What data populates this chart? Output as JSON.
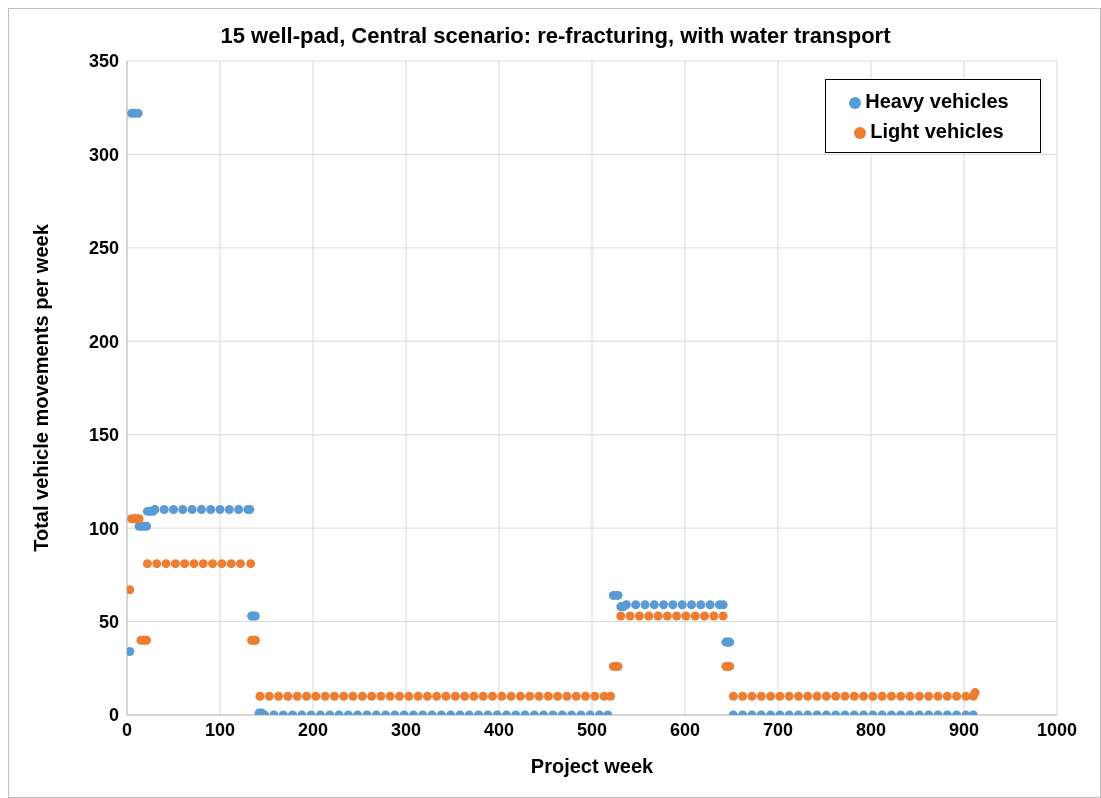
{
  "chart_data": {
    "type": "scatter",
    "title": "15 well-pad, Central scenario: re-fracturing, with water transport",
    "xlabel": "Project week",
    "ylabel": "Total vehicle movements per week",
    "xlim": [
      0,
      1000
    ],
    "xticks": [
      0,
      100,
      200,
      300,
      400,
      500,
      600,
      700,
      800,
      900,
      1000
    ],
    "ylim": [
      0,
      350
    ],
    "yticks": [
      0,
      50,
      100,
      150,
      200,
      250,
      300,
      350
    ],
    "grid": true,
    "legend": "top right",
    "marker": "circle",
    "series": [
      {
        "name": "Heavy vehicles",
        "color": "#5b9bd5",
        "x": [
          3,
          5,
          8,
          12,
          13,
          16,
          19,
          21,
          22,
          25,
          28,
          30,
          40,
          50,
          60,
          70,
          80,
          90,
          100,
          110,
          120,
          130,
          132,
          134,
          136,
          138,
          142,
          145,
          148,
          158,
          168,
          178,
          188,
          198,
          208,
          218,
          228,
          238,
          248,
          258,
          268,
          278,
          288,
          298,
          308,
          318,
          328,
          338,
          348,
          358,
          368,
          378,
          388,
          398,
          408,
          418,
          428,
          438,
          448,
          458,
          468,
          478,
          488,
          498,
          508,
          517,
          523,
          526,
          528,
          531,
          534,
          537,
          547,
          557,
          567,
          577,
          587,
          597,
          607,
          617,
          627,
          637,
          641,
          644,
          646,
          648,
          652,
          662,
          672,
          682,
          692,
          702,
          712,
          722,
          732,
          742,
          752,
          762,
          772,
          782,
          792,
          802,
          812,
          822,
          832,
          842,
          852,
          862,
          872,
          882,
          892,
          902,
          910
        ],
        "values": [
          34,
          322,
          322,
          322,
          101,
          101,
          101,
          101,
          109,
          109,
          109,
          110,
          110,
          110,
          110,
          110,
          110,
          110,
          110,
          110,
          110,
          110,
          110,
          53,
          53,
          53,
          1,
          1,
          0,
          0,
          0,
          0,
          0,
          0,
          0,
          0,
          0,
          0,
          0,
          0,
          0,
          0,
          0,
          0,
          0,
          0,
          0,
          0,
          0,
          0,
          0,
          0,
          0,
          0,
          0,
          0,
          0,
          0,
          0,
          0,
          0,
          0,
          0,
          0,
          0,
          0,
          64,
          64,
          64,
          58,
          58,
          59,
          59,
          59,
          59,
          59,
          59,
          59,
          59,
          59,
          59,
          59,
          59,
          39,
          39,
          39,
          0,
          0,
          0,
          0,
          0,
          0,
          0,
          0,
          0,
          0,
          0,
          0,
          0,
          0,
          0,
          0,
          0,
          0,
          0,
          0,
          0,
          0,
          0,
          0,
          0,
          0,
          0
        ]
      },
      {
        "name": "Light vehicles",
        "color": "#ed7d31",
        "x": [
          3,
          5,
          8,
          10,
          13,
          15,
          18,
          21,
          22,
          32,
          42,
          52,
          62,
          72,
          82,
          92,
          102,
          112,
          122,
          133,
          134,
          136,
          138,
          143,
          153,
          163,
          173,
          183,
          193,
          203,
          213,
          223,
          233,
          243,
          253,
          263,
          273,
          283,
          293,
          303,
          313,
          323,
          333,
          343,
          353,
          363,
          373,
          383,
          393,
          403,
          413,
          423,
          433,
          443,
          453,
          463,
          473,
          483,
          493,
          503,
          513,
          520,
          523,
          526,
          528,
          531,
          541,
          551,
          561,
          571,
          581,
          591,
          601,
          611,
          621,
          631,
          641,
          644,
          646,
          648,
          652,
          662,
          672,
          682,
          692,
          702,
          712,
          722,
          732,
          742,
          752,
          762,
          772,
          782,
          792,
          802,
          812,
          822,
          832,
          842,
          852,
          862,
          872,
          882,
          892,
          902,
          910,
          912
        ],
        "values": [
          67,
          105,
          105,
          105,
          105,
          40,
          40,
          40,
          81,
          81,
          81,
          81,
          81,
          81,
          81,
          81,
          81,
          81,
          81,
          81,
          40,
          40,
          40,
          10,
          10,
          10,
          10,
          10,
          10,
          10,
          10,
          10,
          10,
          10,
          10,
          10,
          10,
          10,
          10,
          10,
          10,
          10,
          10,
          10,
          10,
          10,
          10,
          10,
          10,
          10,
          10,
          10,
          10,
          10,
          10,
          10,
          10,
          10,
          10,
          10,
          10,
          10,
          26,
          26,
          26,
          53,
          53,
          53,
          53,
          53,
          53,
          53,
          53,
          53,
          53,
          53,
          53,
          26,
          26,
          26,
          10,
          10,
          10,
          10,
          10,
          10,
          10,
          10,
          10,
          10,
          10,
          10,
          10,
          10,
          10,
          10,
          10,
          10,
          10,
          10,
          10,
          10,
          10,
          10,
          10,
          10,
          10,
          12
        ]
      }
    ]
  }
}
